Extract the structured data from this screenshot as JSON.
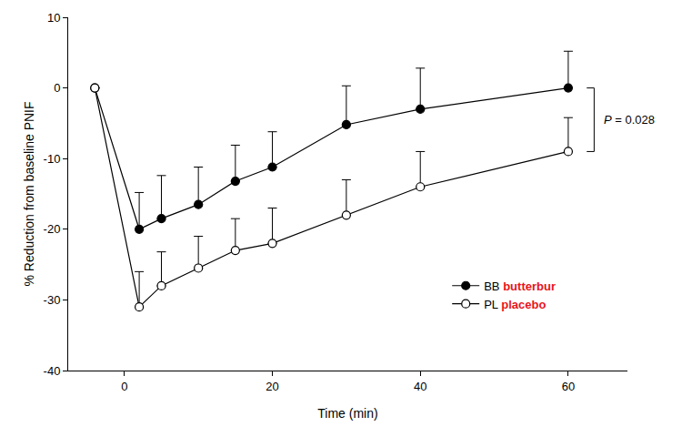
{
  "chart_data": {
    "type": "line",
    "x_label": "Time (min)",
    "y_label": "% Reduction from baseline PNIF",
    "x": [
      -4,
      2,
      5,
      10,
      15,
      20,
      30,
      40,
      60
    ],
    "series": [
      {
        "name": "BB butterbur",
        "color": "#000000",
        "marker": "filled",
        "values": [
          0,
          -20,
          -18.5,
          -16.5,
          -13.2,
          -11.2,
          -5.2,
          -3,
          0
        ],
        "errors": [
          null,
          5.2,
          6.1,
          5.3,
          5.1,
          5.0,
          5.5,
          5.8,
          5.2
        ]
      },
      {
        "name": "PL placebo",
        "color": "#000000",
        "marker": "open",
        "values": [
          0,
          -31,
          -28,
          -25.5,
          -23,
          -22,
          -18,
          -14,
          -9
        ],
        "errors": [
          null,
          5,
          4.8,
          4.5,
          4.5,
          5,
          5,
          5,
          4.8
        ]
      }
    ],
    "annotations": [
      {
        "text": "P = 0.028"
      }
    ],
    "xlim": [
      -7.6,
      68
    ],
    "xticks": [
      0,
      20,
      40,
      60
    ],
    "ylim": [
      -40,
      10
    ],
    "yticks": [
      -40,
      -30,
      -20,
      -10,
      0,
      10
    ],
    "grid": false,
    "legend": "lower right"
  }
}
